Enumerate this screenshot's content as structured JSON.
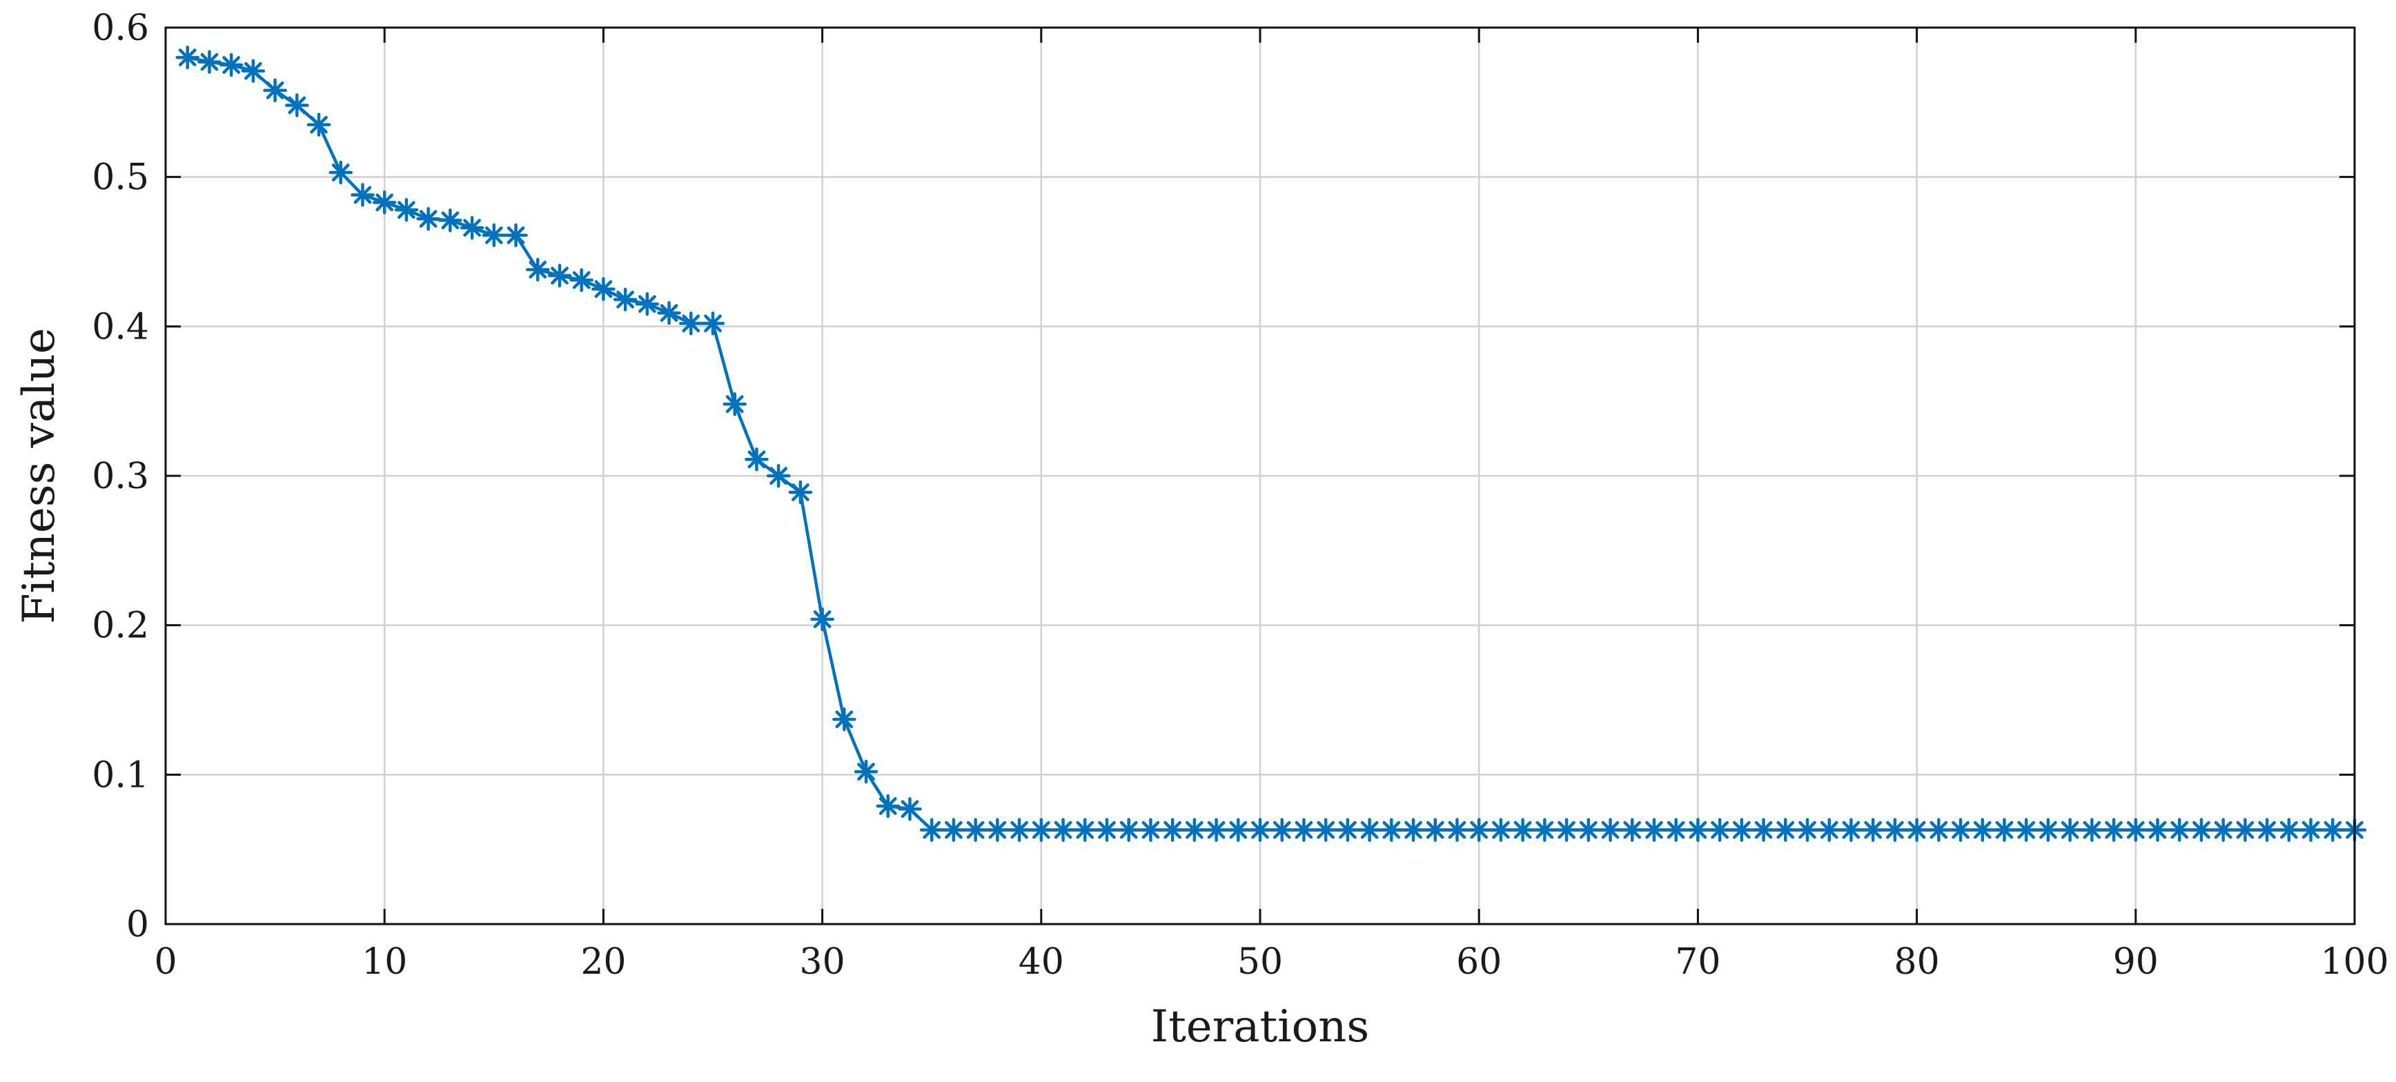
{
  "chart_data": {
    "type": "line",
    "title": "",
    "xlabel": "Iterations",
    "ylabel": "Fitness value",
    "xlim": [
      0,
      100
    ],
    "ylim": [
      0,
      0.6
    ],
    "xticks": [
      0,
      10,
      20,
      30,
      40,
      50,
      60,
      70,
      80,
      90,
      100
    ],
    "yticks": [
      0,
      0.1,
      0.2,
      0.3,
      0.4,
      0.5,
      0.6
    ],
    "xtick_labels": [
      "0",
      "10",
      "20",
      "30",
      "40",
      "50",
      "60",
      "70",
      "80",
      "90",
      "100"
    ],
    "ytick_labels": [
      "0",
      "0.1",
      "0.2",
      "0.3",
      "0.4",
      "0.5",
      "0.6"
    ],
    "grid": true,
    "legend": false,
    "series": [
      {
        "color": "#0072BD",
        "marker": "asterisk",
        "x": [
          1,
          2,
          3,
          4,
          5,
          6,
          7,
          8,
          9,
          10,
          11,
          12,
          13,
          14,
          15,
          16,
          17,
          18,
          19,
          20,
          21,
          22,
          23,
          24,
          25,
          26,
          27,
          28,
          29,
          30,
          31,
          32,
          33,
          34,
          35,
          36,
          37,
          38,
          39,
          40,
          41,
          42,
          43,
          44,
          45,
          46,
          47,
          48,
          49,
          50,
          51,
          52,
          53,
          54,
          55,
          56,
          57,
          58,
          59,
          60,
          61,
          62,
          63,
          64,
          65,
          66,
          67,
          68,
          69,
          70,
          71,
          72,
          73,
          74,
          75,
          76,
          77,
          78,
          79,
          80,
          81,
          82,
          83,
          84,
          85,
          86,
          87,
          88,
          89,
          90,
          91,
          92,
          93,
          94,
          95,
          96,
          97,
          98,
          99,
          100
        ],
        "values": [
          0.58,
          0.577,
          0.575,
          0.571,
          0.558,
          0.548,
          0.535,
          0.503,
          0.488,
          0.483,
          0.478,
          0.472,
          0.471,
          0.466,
          0.461,
          0.461,
          0.438,
          0.434,
          0.431,
          0.425,
          0.418,
          0.415,
          0.409,
          0.402,
          0.402,
          0.348,
          0.311,
          0.3,
          0.289,
          0.204,
          0.137,
          0.102,
          0.079,
          0.077,
          0.063,
          0.063,
          0.063,
          0.063,
          0.063,
          0.063,
          0.063,
          0.063,
          0.063,
          0.063,
          0.063,
          0.063,
          0.063,
          0.063,
          0.063,
          0.063,
          0.063,
          0.063,
          0.063,
          0.063,
          0.063,
          0.063,
          0.063,
          0.063,
          0.063,
          0.063,
          0.063,
          0.063,
          0.063,
          0.063,
          0.063,
          0.063,
          0.063,
          0.063,
          0.063,
          0.063,
          0.063,
          0.063,
          0.063,
          0.063,
          0.063,
          0.063,
          0.063,
          0.063,
          0.063,
          0.063,
          0.063,
          0.063,
          0.063,
          0.063,
          0.063,
          0.063,
          0.063,
          0.063,
          0.063,
          0.063,
          0.063,
          0.063,
          0.063,
          0.063,
          0.063,
          0.063,
          0.063,
          0.063,
          0.063,
          0.063
        ]
      }
    ]
  }
}
